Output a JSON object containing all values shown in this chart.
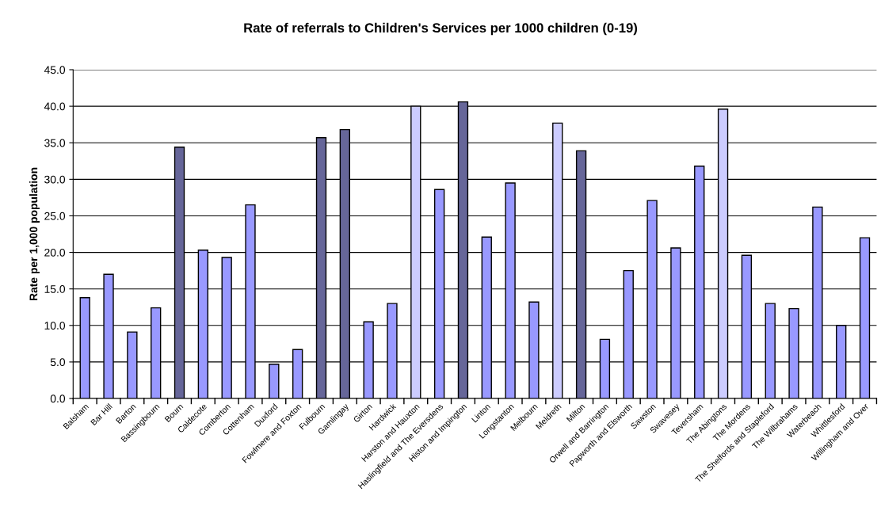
{
  "chart_data": {
    "type": "bar",
    "title": "Rate of referrals to Children's Services per 1000 children (0-19)",
    "ylabel": "Rate per 1,000 population",
    "categories": [
      "Balsham",
      "Bar Hill",
      "Barton",
      "Bassingbourn",
      "Bourn",
      "Caldecote",
      "Comberton",
      "Cottenham",
      "Duxford",
      "Fowlmere and Foxton",
      "Fulbourn",
      "Gamlingay",
      "Girton",
      "Hardwick",
      "Harston and Hauxton",
      "Haslingfield and The Eversdens",
      "Histon and Impington",
      "Linton",
      "Longstanton",
      "Melbourn",
      "Meldreth",
      "Milton",
      "Orwell and Barrington",
      "Papworth and Elsworth",
      "Sawston",
      "Swavesey",
      "Teversham",
      "The Abingtons",
      "The Mordens",
      "The Shelfords and Stapleford",
      "The Wilbrahams",
      "Waterbeach",
      "Whittlesford",
      "Willingham and Over"
    ],
    "values": [
      13.8,
      17.0,
      9.1,
      12.4,
      34.4,
      20.3,
      19.3,
      26.5,
      4.7,
      6.7,
      35.7,
      36.8,
      10.5,
      13.0,
      40.0,
      28.6,
      40.6,
      22.1,
      29.5,
      13.2,
      37.7,
      33.9,
      8.1,
      17.5,
      27.1,
      20.6,
      31.8,
      39.6,
      19.6,
      13.0,
      12.3,
      26.2,
      10.0,
      22.0
    ],
    "colors": [
      "#9999ff",
      "#9999ff",
      "#9999ff",
      "#9999ff",
      "#666699",
      "#9999ff",
      "#9999ff",
      "#9999ff",
      "#9999ff",
      "#9999ff",
      "#666699",
      "#666699",
      "#9999ff",
      "#9999ff",
      "#ccccff",
      "#9999ff",
      "#666699",
      "#9999ff",
      "#9999ff",
      "#9999ff",
      "#ccccff",
      "#666699",
      "#9999ff",
      "#9999ff",
      "#9999ff",
      "#9999ff",
      "#9999ff",
      "#ccccff",
      "#9999ff",
      "#9999ff",
      "#9999ff",
      "#9999ff",
      "#9999ff",
      "#9999ff"
    ],
    "ylim": [
      0,
      45
    ],
    "yticks": [
      {
        "value": 0,
        "label": "0.0"
      },
      {
        "value": 5,
        "label": "5.0"
      },
      {
        "value": 10,
        "label": "10.0"
      },
      {
        "value": 15,
        "label": "15.0"
      },
      {
        "value": 20,
        "label": "20.0"
      },
      {
        "value": 25,
        "label": "25.0"
      },
      {
        "value": 30,
        "label": "30.0"
      },
      {
        "value": 35,
        "label": "35.0"
      },
      {
        "value": 40,
        "label": "40.0"
      },
      {
        "value": 45,
        "label": "45.0"
      }
    ],
    "grid": "y"
  }
}
